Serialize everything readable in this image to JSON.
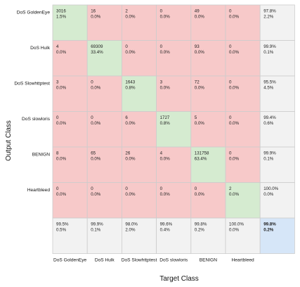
{
  "chart_data": {
    "type": "heatmap",
    "subtype": "confusion-matrix",
    "xlabel": "Target Class",
    "ylabel": "Output Class",
    "row_labels": [
      "DoS GoldenEye",
      "DoS Hulk",
      "DoS Slowhttptest",
      "DoS slowloris",
      "BENIGN",
      "Heartbleed"
    ],
    "col_labels": [
      "DoS GoldenEye",
      "DoS Hulk",
      "DoS Slowhttptest",
      "DoS slowloris",
      "BENIGN",
      "Heartbleed"
    ],
    "cells": [
      [
        {
          "count": "3016",
          "pct": "1.5%"
        },
        {
          "count": "16",
          "pct": "0.0%"
        },
        {
          "count": "2",
          "pct": "0.0%"
        },
        {
          "count": "0",
          "pct": "0.0%"
        },
        {
          "count": "49",
          "pct": "0.0%"
        },
        {
          "count": "0",
          "pct": "0.0%"
        }
      ],
      [
        {
          "count": "4",
          "pct": "0.0%"
        },
        {
          "count": "69309",
          "pct": "33.4%"
        },
        {
          "count": "0",
          "pct": "0.0%"
        },
        {
          "count": "0",
          "pct": "0.0%"
        },
        {
          "count": "93",
          "pct": "0.0%"
        },
        {
          "count": "0",
          "pct": "0.0%"
        }
      ],
      [
        {
          "count": "3",
          "pct": "0.0%"
        },
        {
          "count": "0",
          "pct": "0.0%"
        },
        {
          "count": "1643",
          "pct": "0.8%"
        },
        {
          "count": "3",
          "pct": "0.0%"
        },
        {
          "count": "72",
          "pct": "0.0%"
        },
        {
          "count": "0",
          "pct": "0.0%"
        }
      ],
      [
        {
          "count": "0",
          "pct": "0.0%"
        },
        {
          "count": "0",
          "pct": "0.0%"
        },
        {
          "count": "6",
          "pct": "0.0%"
        },
        {
          "count": "1727",
          "pct": "0.8%"
        },
        {
          "count": "5",
          "pct": "0.0%"
        },
        {
          "count": "0",
          "pct": "0.0%"
        }
      ],
      [
        {
          "count": "8",
          "pct": "0.0%"
        },
        {
          "count": "65",
          "pct": "0.0%"
        },
        {
          "count": "26",
          "pct": "0.0%"
        },
        {
          "count": "4",
          "pct": "0.0%"
        },
        {
          "count": "131758",
          "pct": "63.4%"
        },
        {
          "count": "0",
          "pct": "0.0%"
        }
      ],
      [
        {
          "count": "0",
          "pct": "0.0%"
        },
        {
          "count": "0",
          "pct": "0.0%"
        },
        {
          "count": "0",
          "pct": "0.0%"
        },
        {
          "count": "0",
          "pct": "0.0%"
        },
        {
          "count": "0",
          "pct": "0.0%"
        },
        {
          "count": "2",
          "pct": "0.0%"
        }
      ]
    ],
    "row_summary": [
      {
        "correct": "97.8%",
        "wrong": "2.2%"
      },
      {
        "correct": "99.9%",
        "wrong": "0.1%"
      },
      {
        "correct": "95.5%",
        "wrong": "4.5%"
      },
      {
        "correct": "99.4%",
        "wrong": "0.6%"
      },
      {
        "correct": "99.9%",
        "wrong": "0.1%"
      },
      {
        "correct": "100.0%",
        "wrong": "0.0%"
      }
    ],
    "col_summary": [
      {
        "correct": "99.5%",
        "wrong": "0.5%"
      },
      {
        "correct": "99.9%",
        "wrong": "0.1%"
      },
      {
        "correct": "98.0%",
        "wrong": "2.0%"
      },
      {
        "correct": "99.6%",
        "wrong": "0.4%"
      },
      {
        "correct": "99.8%",
        "wrong": "0.2%"
      },
      {
        "correct": "100.0%",
        "wrong": "0.0%"
      }
    ],
    "overall": {
      "correct": "99.8%",
      "wrong": "0.2%"
    },
    "colors": {
      "diagonal": "#d5ebd0",
      "off_diagonal": "#f7c9c9",
      "summary": "#f2f2f2",
      "overall": "#d6e6f8",
      "grid": "#cccccc"
    }
  }
}
